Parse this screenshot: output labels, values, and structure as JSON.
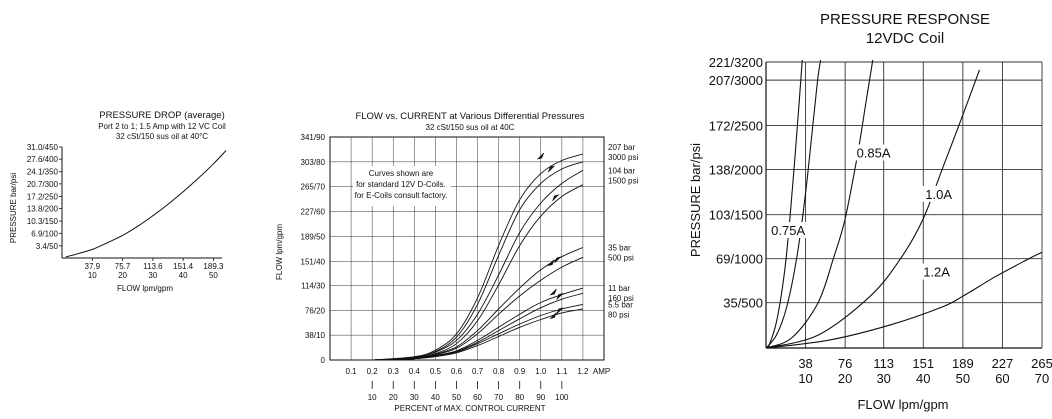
{
  "colors": {
    "ink": "#111111",
    "grid": "#333333",
    "paper": "#ffffff"
  },
  "chart_data": [
    {
      "type": "line",
      "title": "PRESSURE DROP (average)",
      "subtitle_lines": [
        "Port 2 to 1; 1.5 Amp with 12 VC Coil",
        "32 cSt/150 sus oil at 40°C"
      ],
      "xlabel": "FLOW lpm/gpm",
      "ylabel": "PRESSURE bar/psi",
      "xlim": [
        0,
        200
      ],
      "ylim": [
        0,
        31.0
      ],
      "x_ticks": [
        37.9,
        75.7,
        113.6,
        151.4,
        189.3
      ],
      "x_tick_labels_top": [
        "37.9",
        "75.7",
        "113.6",
        "151.4",
        "189.3"
      ],
      "x_tick_labels_bottom": [
        "10",
        "20",
        "30",
        "40",
        "50"
      ],
      "y_ticks": [
        3.4,
        6.9,
        10.3,
        13.8,
        17.2,
        20.7,
        24.1,
        27.6,
        31.0
      ],
      "y_tick_labels": [
        "3.4/50",
        "6.9/100",
        "10.3/150",
        "13.8/200",
        "17.2/250",
        "20.7/300",
        "24.1/350",
        "27.6/400",
        "31.0/450"
      ],
      "grid": false,
      "series": [
        {
          "x": [
            5,
            20,
            37.9,
            56,
            75.7,
            95,
            113.6,
            132,
            151.4,
            170,
            189.3,
            205
          ],
          "y": [
            0.3,
            1.2,
            2.4,
            4.2,
            6.3,
            8.9,
            11.8,
            14.9,
            18.5,
            22.2,
            26.3,
            30.0
          ]
        }
      ]
    },
    {
      "type": "line",
      "title": "FLOW vs. CURRENT at Various Differential Pressures",
      "subtitle_lines": [
        "32 cSt/150 sus oil at 40C"
      ],
      "xlabel": "PERCENT of MAX. CONTROL CURRENT",
      "ylabel": "FLOW lpm/gpm",
      "xlim": [
        0,
        1.3
      ],
      "ylim": [
        0,
        341
      ],
      "x_ticks": [
        0.1,
        0.2,
        0.3,
        0.4,
        0.5,
        0.6,
        0.7,
        0.8,
        0.9,
        1.0,
        1.1,
        1.2
      ],
      "x_tick_labels": [
        "0.1",
        "0.2",
        "0.3",
        "0.4",
        "0.5",
        "0.6",
        "0.7",
        "0.8",
        "0.9",
        "1.0",
        "1.1",
        "1.2"
      ],
      "x_unit_label": "AMP",
      "x_tick_labels_bottom": [
        "10",
        "20",
        "30",
        "40",
        "50",
        "60",
        "70",
        "80",
        "90",
        "100"
      ],
      "y_ticks": [
        0,
        38,
        76,
        114,
        151,
        189,
        227,
        265,
        303,
        341
      ],
      "y_tick_labels": [
        "0",
        "38/10",
        "76/20",
        "114/30",
        "151/40",
        "189/50",
        "227/60",
        "265/70",
        "303/80",
        "341/90"
      ],
      "grid": true,
      "annotation_lines": [
        "Curves shown are",
        "for standard 12V D-Coils.",
        "for E-Coils consult factory."
      ],
      "series": [
        {
          "name": "207 bar / 3000 psi",
          "label_lines": [
            "207 bar",
            "3000 psi"
          ],
          "x": [
            0.2,
            0.4,
            0.5,
            0.6,
            0.7,
            0.8,
            0.9,
            1.0,
            1.1,
            1.2
          ],
          "y": [
            0,
            5,
            15,
            40,
            95,
            175,
            245,
            285,
            305,
            315
          ]
        },
        {
          "name": "",
          "x": [
            0.2,
            0.4,
            0.5,
            0.6,
            0.7,
            0.8,
            0.9,
            1.0,
            1.1,
            1.2
          ],
          "y": [
            0,
            4,
            13,
            35,
            85,
            160,
            230,
            270,
            292,
            303
          ]
        },
        {
          "name": "104 bar / 1500 psi",
          "label_lines": [
            "104 bar",
            "1500 psi"
          ],
          "x": [
            0.2,
            0.4,
            0.5,
            0.6,
            0.7,
            0.8,
            0.9,
            1.0,
            1.1,
            1.2
          ],
          "y": [
            0,
            4,
            12,
            30,
            70,
            130,
            195,
            240,
            270,
            290
          ]
        },
        {
          "name": "",
          "x": [
            0.2,
            0.4,
            0.5,
            0.6,
            0.7,
            0.8,
            0.9,
            1.0,
            1.1,
            1.2
          ],
          "y": [
            0,
            3,
            10,
            25,
            60,
            115,
            175,
            220,
            250,
            268
          ]
        },
        {
          "name": "35 bar / 500 psi",
          "label_lines": [
            "35 bar",
            "500 psi"
          ],
          "x": [
            0.2,
            0.4,
            0.5,
            0.6,
            0.7,
            0.8,
            0.9,
            1.0,
            1.1,
            1.2
          ],
          "y": [
            0,
            3,
            9,
            20,
            45,
            78,
            110,
            138,
            158,
            172
          ]
        },
        {
          "name": "",
          "x": [
            0.2,
            0.4,
            0.5,
            0.6,
            0.7,
            0.8,
            0.9,
            1.0,
            1.1,
            1.2
          ],
          "y": [
            0,
            3,
            8,
            18,
            40,
            70,
            98,
            122,
            142,
            157
          ]
        },
        {
          "name": "11 bar / 160 psi",
          "label_lines": [
            "11 bar",
            "160 psi"
          ],
          "x": [
            0.2,
            0.4,
            0.5,
            0.6,
            0.7,
            0.8,
            0.9,
            1.0,
            1.1,
            1.2
          ],
          "y": [
            0,
            2,
            7,
            14,
            30,
            50,
            70,
            88,
            100,
            110
          ]
        },
        {
          "name": "",
          "x": [
            0.2,
            0.4,
            0.5,
            0.6,
            0.7,
            0.8,
            0.9,
            1.0,
            1.1,
            1.2
          ],
          "y": [
            0,
            2,
            6,
            13,
            27,
            45,
            63,
            80,
            93,
            102
          ]
        },
        {
          "name": "5.5 bar / 80 psi",
          "label_lines": [
            "5.5 bar",
            "80 psi"
          ],
          "x": [
            0.2,
            0.4,
            0.5,
            0.6,
            0.7,
            0.8,
            0.9,
            1.0,
            1.1,
            1.2
          ],
          "y": [
            0,
            2,
            6,
            12,
            25,
            40,
            55,
            68,
            78,
            85
          ]
        },
        {
          "name": "",
          "x": [
            0.2,
            0.4,
            0.5,
            0.6,
            0.7,
            0.8,
            0.9,
            1.0,
            1.1,
            1.2
          ],
          "y": [
            0,
            2,
            5,
            11,
            22,
            36,
            50,
            62,
            72,
            78
          ]
        }
      ],
      "arrows": [
        {
          "x": 1.0,
          "y": 312,
          "dir": "down"
        },
        {
          "x": 1.05,
          "y": 292,
          "dir": "up"
        },
        {
          "x": 1.07,
          "y": 248,
          "dir": "up"
        },
        {
          "x": 1.05,
          "y": 149,
          "dir": "down"
        },
        {
          "x": 1.08,
          "y": 153,
          "dir": "up"
        },
        {
          "x": 1.06,
          "y": 104,
          "dir": "down"
        },
        {
          "x": 1.09,
          "y": 97,
          "dir": "up"
        },
        {
          "x": 1.06,
          "y": 68,
          "dir": "down"
        },
        {
          "x": 1.09,
          "y": 75,
          "dir": "up"
        }
      ]
    },
    {
      "type": "line",
      "title": "PRESSURE RESPONSE",
      "subtitle": "12VDC Coil",
      "xlabel": "FLOW lpm/gpm",
      "ylabel": "PRESSURE bar/psi",
      "xlim": [
        0,
        265
      ],
      "ylim": [
        0,
        221
      ],
      "x_ticks": [
        38,
        76,
        113,
        151,
        189,
        227,
        265
      ],
      "x_tick_labels_top": [
        "38",
        "76",
        "113",
        "151",
        "189",
        "227",
        "265"
      ],
      "x_tick_labels_bottom": [
        "10",
        "20",
        "30",
        "40",
        "50",
        "60",
        "70"
      ],
      "y_ticks": [
        35,
        69,
        103,
        138,
        172,
        207,
        221
      ],
      "y_tick_labels": [
        "35/500",
        "69/1000",
        "103/1500",
        "138/2000",
        "172/2500",
        "207/3000",
        "221/3200"
      ],
      "grid": true,
      "series": [
        {
          "name": "0.75A",
          "x": [
            0,
            10,
            20,
            30,
            38,
            46,
            50,
            53
          ],
          "y": [
            0,
            10,
            32,
            72,
            120,
            180,
            210,
            225
          ]
        },
        {
          "name": "",
          "x": [
            2,
            10,
            18,
            24,
            30,
            35
          ],
          "y": [
            0,
            20,
            60,
            110,
            170,
            225
          ]
        },
        {
          "name": "0.85A",
          "x": [
            0,
            25,
            50,
            65,
            76,
            88,
            96,
            103
          ],
          "y": [
            0,
            8,
            35,
            70,
            100,
            150,
            190,
            225
          ]
        },
        {
          "name": "1.0A",
          "x": [
            0,
            50,
            100,
            130,
            151,
            170,
            189,
            205
          ],
          "y": [
            0,
            10,
            40,
            70,
            100,
            140,
            180,
            215
          ]
        },
        {
          "name": "1.2A",
          "x": [
            0,
            60,
            120,
            170,
            189,
            220,
            250,
            265
          ],
          "y": [
            0,
            6,
            18,
            32,
            40,
            55,
            68,
            74
          ]
        }
      ]
    }
  ]
}
